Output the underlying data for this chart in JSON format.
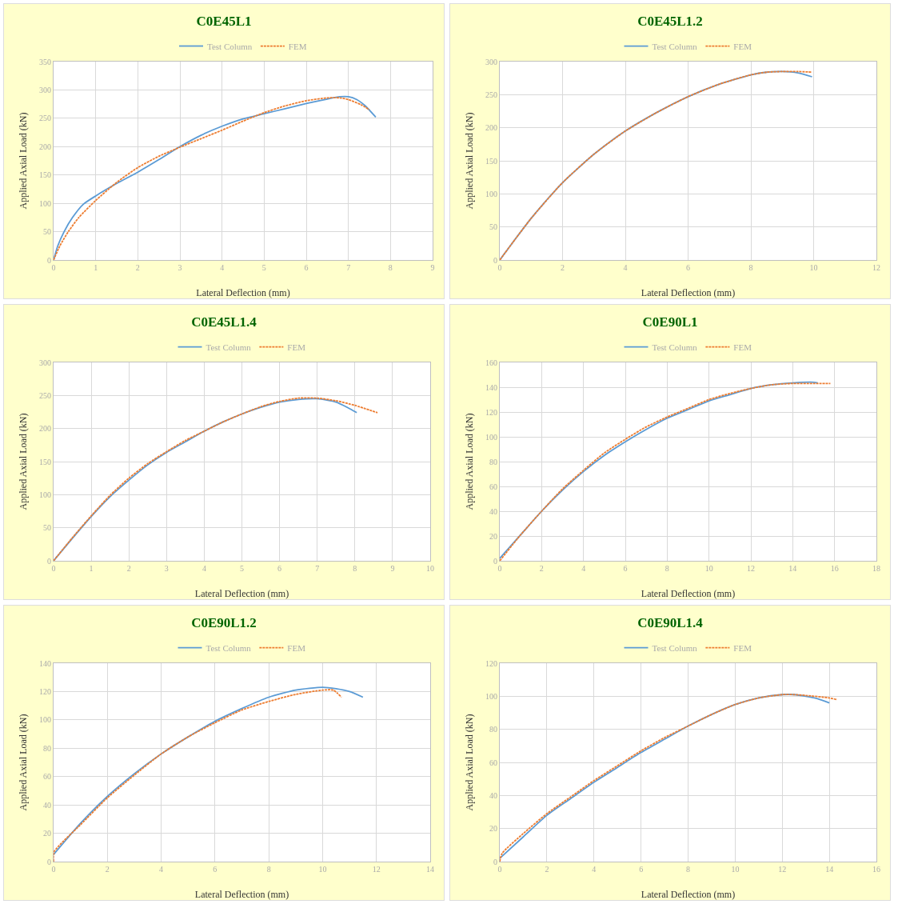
{
  "chart_data": [
    {
      "type": "line",
      "title": "C0E45L1",
      "xlabel": "Lateral Deflection (mm)",
      "ylabel": "Applied Axial Load (kN)",
      "grid": true,
      "legend": "top",
      "xlim": [
        0,
        9
      ],
      "xticks": [
        0,
        1,
        2,
        3,
        4,
        5,
        6,
        7,
        8,
        9
      ],
      "ylim": [
        0,
        350
      ],
      "yticks": [
        0,
        50,
        100,
        150,
        200,
        250,
        300,
        350
      ],
      "series": [
        {
          "name": "Test Column",
          "color": "#5b9bd5",
          "line_style": "solid",
          "x": [
            0,
            0.1,
            0.25,
            0.45,
            0.7,
            1,
            1.5,
            2,
            2.5,
            3,
            3.5,
            4,
            4.5,
            5,
            5.5,
            6,
            6.5,
            6.8,
            7,
            7.2,
            7.4,
            7.65
          ],
          "values": [
            0,
            25,
            50,
            75,
            98,
            113,
            135,
            155,
            177,
            200,
            220,
            236,
            249,
            258,
            267,
            276,
            284,
            288,
            288,
            283,
            272,
            252
          ]
        },
        {
          "name": "FEM",
          "color": "#ed7d31",
          "line_style": "dashed",
          "x": [
            0,
            0.15,
            0.35,
            0.6,
            1,
            1.5,
            2,
            2.5,
            3,
            3.5,
            4,
            4.5,
            5,
            5.5,
            6,
            6.5,
            6.8,
            7,
            7.3,
            7.5
          ],
          "values": [
            0,
            25,
            50,
            75,
            105,
            137,
            163,
            183,
            199,
            214,
            229,
            245,
            260,
            272,
            281,
            286,
            286,
            283,
            274,
            265
          ]
        }
      ]
    },
    {
      "type": "line",
      "title": "C0E45L1.2",
      "xlabel": "Lateral Deflection (mm)",
      "ylabel": "Applied Axial Load (kN)",
      "grid": true,
      "legend": "top",
      "xlim": [
        0,
        12
      ],
      "xticks": [
        0,
        2,
        4,
        6,
        8,
        10,
        12
      ],
      "ylim": [
        0,
        300
      ],
      "yticks": [
        0,
        50,
        100,
        150,
        200,
        250,
        300
      ],
      "series": [
        {
          "name": "Test Column",
          "color": "#5b9bd5",
          "line_style": "solid",
          "x": [
            0,
            0.5,
            1,
            1.5,
            2,
            3,
            4,
            5,
            6,
            7,
            8,
            8.5,
            9,
            9.5,
            9.95
          ],
          "values": [
            0,
            32,
            63,
            91,
            117,
            160,
            195,
            223,
            247,
            266,
            280,
            284,
            285,
            283,
            277
          ]
        },
        {
          "name": "FEM",
          "color": "#ed7d31",
          "line_style": "dashed",
          "x": [
            0,
            0.5,
            1,
            2,
            3,
            4,
            5,
            6,
            7,
            8,
            8.5,
            9,
            9.5,
            9.95
          ],
          "values": [
            0,
            32,
            63,
            117,
            160,
            195,
            223,
            247,
            266,
            280,
            284,
            285,
            285,
            284
          ]
        }
      ]
    },
    {
      "type": "line",
      "title": "C0E45L1.4",
      "xlabel": "Lateral Deflection (mm)",
      "ylabel": "Applied Axial Load (kN)",
      "grid": true,
      "legend": "top",
      "xlim": [
        0,
        10
      ],
      "xticks": [
        0,
        1,
        2,
        3,
        4,
        5,
        6,
        7,
        8,
        9,
        10
      ],
      "ylim": [
        0,
        300
      ],
      "yticks": [
        0,
        50,
        100,
        150,
        200,
        250,
        300
      ],
      "series": [
        {
          "name": "Test Column",
          "color": "#5b9bd5",
          "line_style": "solid",
          "x": [
            0,
            0.5,
            1,
            1.5,
            2,
            2.5,
            3,
            3.5,
            4,
            4.5,
            5,
            5.5,
            6,
            6.5,
            7,
            7.5,
            7.8,
            8.05
          ],
          "values": [
            0,
            34,
            67,
            97,
            122,
            145,
            164,
            180,
            196,
            210,
            222,
            232,
            240,
            244,
            245,
            240,
            232,
            224
          ]
        },
        {
          "name": "FEM",
          "color": "#ed7d31",
          "line_style": "dashed",
          "x": [
            0,
            0.5,
            1,
            1.5,
            2,
            2.5,
            3,
            3.5,
            4,
            4.5,
            5,
            5.5,
            6,
            6.5,
            7,
            7.5,
            8,
            8.6
          ],
          "values": [
            0,
            35,
            68,
            99,
            125,
            147,
            165,
            182,
            196,
            210,
            222,
            233,
            241,
            246,
            246,
            242,
            235,
            224
          ]
        }
      ]
    },
    {
      "type": "line",
      "title": "C0E90L1",
      "xlabel": "Lateral Deflection (mm)",
      "ylabel": "Applied Axial Load (kN)",
      "grid": true,
      "legend": "top",
      "xlim": [
        0,
        18
      ],
      "xticks": [
        0,
        2,
        4,
        6,
        8,
        10,
        12,
        14,
        16,
        18
      ],
      "ylim": [
        0,
        160
      ],
      "yticks": [
        0,
        20,
        40,
        60,
        80,
        100,
        120,
        140,
        160
      ],
      "series": [
        {
          "name": "Test Column",
          "color": "#5b9bd5",
          "line_style": "solid",
          "x": [
            0,
            1,
            2,
            3,
            4,
            5,
            6,
            7,
            8,
            9,
            10,
            11,
            12,
            13,
            14,
            15,
            15.2
          ],
          "values": [
            2,
            21,
            40,
            57,
            72,
            85,
            96,
            106,
            115,
            122,
            129,
            134,
            139,
            142,
            143.5,
            144,
            143.5
          ]
        },
        {
          "name": "FEM",
          "color": "#ed7d31",
          "line_style": "dashed",
          "x": [
            0,
            1,
            2,
            3,
            4,
            5,
            6,
            7,
            8,
            9,
            10,
            11,
            12,
            13,
            14,
            15,
            15.8
          ],
          "values": [
            0,
            21,
            40,
            58,
            73,
            87,
            98,
            108,
            116,
            123,
            130,
            135,
            139,
            142,
            143,
            143,
            143
          ]
        }
      ]
    },
    {
      "type": "line",
      "title": "C0E90L1.2",
      "xlabel": "Lateral Deflection (mm)",
      "ylabel": "Applied Axial Load (kN)",
      "grid": true,
      "legend": "top",
      "xlim": [
        0,
        14
      ],
      "xticks": [
        0,
        2,
        4,
        6,
        8,
        10,
        12,
        14
      ],
      "ylim": [
        0,
        140
      ],
      "yticks": [
        0,
        20,
        40,
        60,
        80,
        100,
        120,
        140
      ],
      "series": [
        {
          "name": "Test Column",
          "color": "#5b9bd5",
          "line_style": "solid",
          "x": [
            0,
            1,
            2,
            3,
            4,
            5,
            6,
            7,
            8,
            9,
            10,
            10.5,
            11,
            11.5
          ],
          "values": [
            5,
            27,
            46,
            62,
            76,
            88,
            99,
            108,
            116,
            121,
            123,
            122,
            120,
            116
          ]
        },
        {
          "name": "FEM",
          "color": "#ed7d31",
          "line_style": "dashed",
          "x": [
            0,
            0.02,
            1,
            2,
            3,
            4,
            5,
            6,
            7,
            8,
            9,
            10,
            10.4,
            10.7
          ],
          "values": [
            0,
            7,
            26,
            45,
            61,
            76,
            88,
            98,
            107,
            113,
            118,
            121,
            121,
            116
          ]
        }
      ]
    },
    {
      "type": "line",
      "title": "C0E90L1.4",
      "xlabel": "Lateral Deflection (mm)",
      "ylabel": "Applied Axial Load (kN)",
      "grid": true,
      "legend": "top",
      "xlim": [
        0,
        16
      ],
      "xticks": [
        0,
        2,
        4,
        6,
        8,
        10,
        12,
        14,
        16
      ],
      "ylim": [
        0,
        120
      ],
      "yticks": [
        0,
        20,
        40,
        60,
        80,
        100,
        120
      ],
      "series": [
        {
          "name": "Test Column",
          "color": "#5b9bd5",
          "line_style": "solid",
          "x": [
            0,
            1,
            2,
            3,
            4,
            5,
            6,
            7,
            8,
            9,
            10,
            11,
            12,
            12.5,
            13,
            13.5,
            14
          ],
          "values": [
            2,
            15,
            28,
            38,
            48,
            57,
            66,
            74,
            82,
            89,
            95,
            99,
            101,
            101,
            100,
            98.5,
            96
          ]
        },
        {
          "name": "FEM",
          "color": "#ed7d31",
          "line_style": "dashed",
          "x": [
            0,
            0.1,
            1,
            2,
            3,
            4,
            5,
            6,
            7,
            8,
            9,
            10,
            11,
            12,
            12.5,
            13,
            14,
            14.3
          ],
          "values": [
            0,
            5,
            17,
            29,
            39,
            49,
            58,
            67,
            75,
            82,
            89,
            95,
            99,
            101,
            101,
            100.5,
            99,
            98
          ]
        }
      ]
    }
  ]
}
